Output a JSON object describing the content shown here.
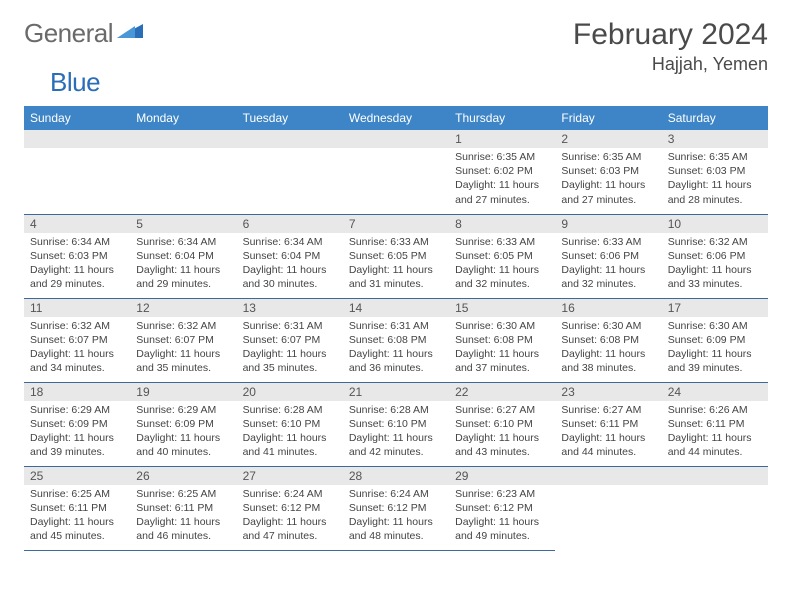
{
  "brand": {
    "part1": "General",
    "part2": "Blue"
  },
  "title": "February 2024",
  "location": "Hajjah, Yemen",
  "colors": {
    "header_bg": "#3d85c6",
    "header_text": "#ffffff",
    "daynum_bg": "#e8e8e8",
    "row_border": "#3d6a9a",
    "brand_gray": "#6a6a6a",
    "brand_blue": "#2a6db8"
  },
  "weekdays": [
    "Sunday",
    "Monday",
    "Tuesday",
    "Wednesday",
    "Thursday",
    "Friday",
    "Saturday"
  ],
  "weeks": [
    [
      null,
      null,
      null,
      null,
      {
        "n": "1",
        "sr": "6:35 AM",
        "ss": "6:02 PM",
        "dl": "11 hours and 27 minutes."
      },
      {
        "n": "2",
        "sr": "6:35 AM",
        "ss": "6:03 PM",
        "dl": "11 hours and 27 minutes."
      },
      {
        "n": "3",
        "sr": "6:35 AM",
        "ss": "6:03 PM",
        "dl": "11 hours and 28 minutes."
      }
    ],
    [
      {
        "n": "4",
        "sr": "6:34 AM",
        "ss": "6:03 PM",
        "dl": "11 hours and 29 minutes."
      },
      {
        "n": "5",
        "sr": "6:34 AM",
        "ss": "6:04 PM",
        "dl": "11 hours and 29 minutes."
      },
      {
        "n": "6",
        "sr": "6:34 AM",
        "ss": "6:04 PM",
        "dl": "11 hours and 30 minutes."
      },
      {
        "n": "7",
        "sr": "6:33 AM",
        "ss": "6:05 PM",
        "dl": "11 hours and 31 minutes."
      },
      {
        "n": "8",
        "sr": "6:33 AM",
        "ss": "6:05 PM",
        "dl": "11 hours and 32 minutes."
      },
      {
        "n": "9",
        "sr": "6:33 AM",
        "ss": "6:06 PM",
        "dl": "11 hours and 32 minutes."
      },
      {
        "n": "10",
        "sr": "6:32 AM",
        "ss": "6:06 PM",
        "dl": "11 hours and 33 minutes."
      }
    ],
    [
      {
        "n": "11",
        "sr": "6:32 AM",
        "ss": "6:07 PM",
        "dl": "11 hours and 34 minutes."
      },
      {
        "n": "12",
        "sr": "6:32 AM",
        "ss": "6:07 PM",
        "dl": "11 hours and 35 minutes."
      },
      {
        "n": "13",
        "sr": "6:31 AM",
        "ss": "6:07 PM",
        "dl": "11 hours and 35 minutes."
      },
      {
        "n": "14",
        "sr": "6:31 AM",
        "ss": "6:08 PM",
        "dl": "11 hours and 36 minutes."
      },
      {
        "n": "15",
        "sr": "6:30 AM",
        "ss": "6:08 PM",
        "dl": "11 hours and 37 minutes."
      },
      {
        "n": "16",
        "sr": "6:30 AM",
        "ss": "6:08 PM",
        "dl": "11 hours and 38 minutes."
      },
      {
        "n": "17",
        "sr": "6:30 AM",
        "ss": "6:09 PM",
        "dl": "11 hours and 39 minutes."
      }
    ],
    [
      {
        "n": "18",
        "sr": "6:29 AM",
        "ss": "6:09 PM",
        "dl": "11 hours and 39 minutes."
      },
      {
        "n": "19",
        "sr": "6:29 AM",
        "ss": "6:09 PM",
        "dl": "11 hours and 40 minutes."
      },
      {
        "n": "20",
        "sr": "6:28 AM",
        "ss": "6:10 PM",
        "dl": "11 hours and 41 minutes."
      },
      {
        "n": "21",
        "sr": "6:28 AM",
        "ss": "6:10 PM",
        "dl": "11 hours and 42 minutes."
      },
      {
        "n": "22",
        "sr": "6:27 AM",
        "ss": "6:10 PM",
        "dl": "11 hours and 43 minutes."
      },
      {
        "n": "23",
        "sr": "6:27 AM",
        "ss": "6:11 PM",
        "dl": "11 hours and 44 minutes."
      },
      {
        "n": "24",
        "sr": "6:26 AM",
        "ss": "6:11 PM",
        "dl": "11 hours and 44 minutes."
      }
    ],
    [
      {
        "n": "25",
        "sr": "6:25 AM",
        "ss": "6:11 PM",
        "dl": "11 hours and 45 minutes."
      },
      {
        "n": "26",
        "sr": "6:25 AM",
        "ss": "6:11 PM",
        "dl": "11 hours and 46 minutes."
      },
      {
        "n": "27",
        "sr": "6:24 AM",
        "ss": "6:12 PM",
        "dl": "11 hours and 47 minutes."
      },
      {
        "n": "28",
        "sr": "6:24 AM",
        "ss": "6:12 PM",
        "dl": "11 hours and 48 minutes."
      },
      {
        "n": "29",
        "sr": "6:23 AM",
        "ss": "6:12 PM",
        "dl": "11 hours and 49 minutes."
      },
      null,
      null
    ]
  ],
  "labels": {
    "sunrise": "Sunrise:",
    "sunset": "Sunset:",
    "daylight": "Daylight:"
  }
}
